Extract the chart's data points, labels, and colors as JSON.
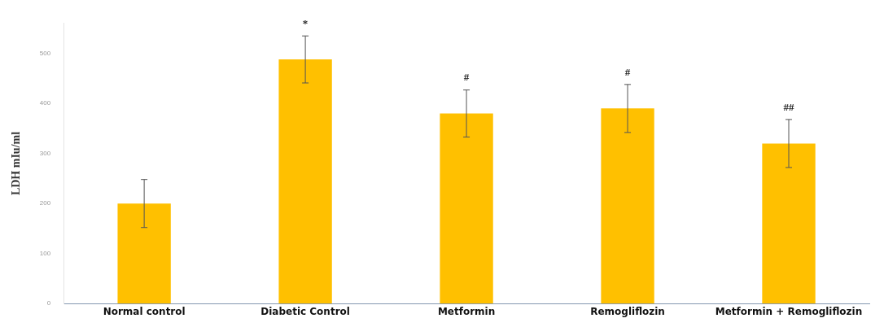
{
  "chart_data": {
    "type": "bar",
    "ylabel": "LDH mIu/ml",
    "categories": [
      "Normal control",
      "Diabetic Control",
      "Metformin",
      "Remogliflozin",
      "Metformin + Remogliflozin"
    ],
    "values": [
      200,
      488,
      380,
      390,
      320
    ],
    "errors": [
      48,
      47,
      47,
      48,
      48
    ],
    "color": "#ffc000",
    "ylim": [
      0,
      560
    ],
    "yticks": [
      0,
      100,
      200,
      300,
      400,
      500
    ],
    "grid": false,
    "legend": false,
    "annotations": [
      {
        "text": "*",
        "x": "Diabetic Control",
        "y": 488
      },
      {
        "text": "#",
        "x": "Metformin",
        "y": 380
      },
      {
        "text": "#",
        "x": "Remogliflozin",
        "y": 390
      },
      {
        "text": "##",
        "x": "Metformin + Remogliflozin",
        "y": 320
      }
    ]
  }
}
